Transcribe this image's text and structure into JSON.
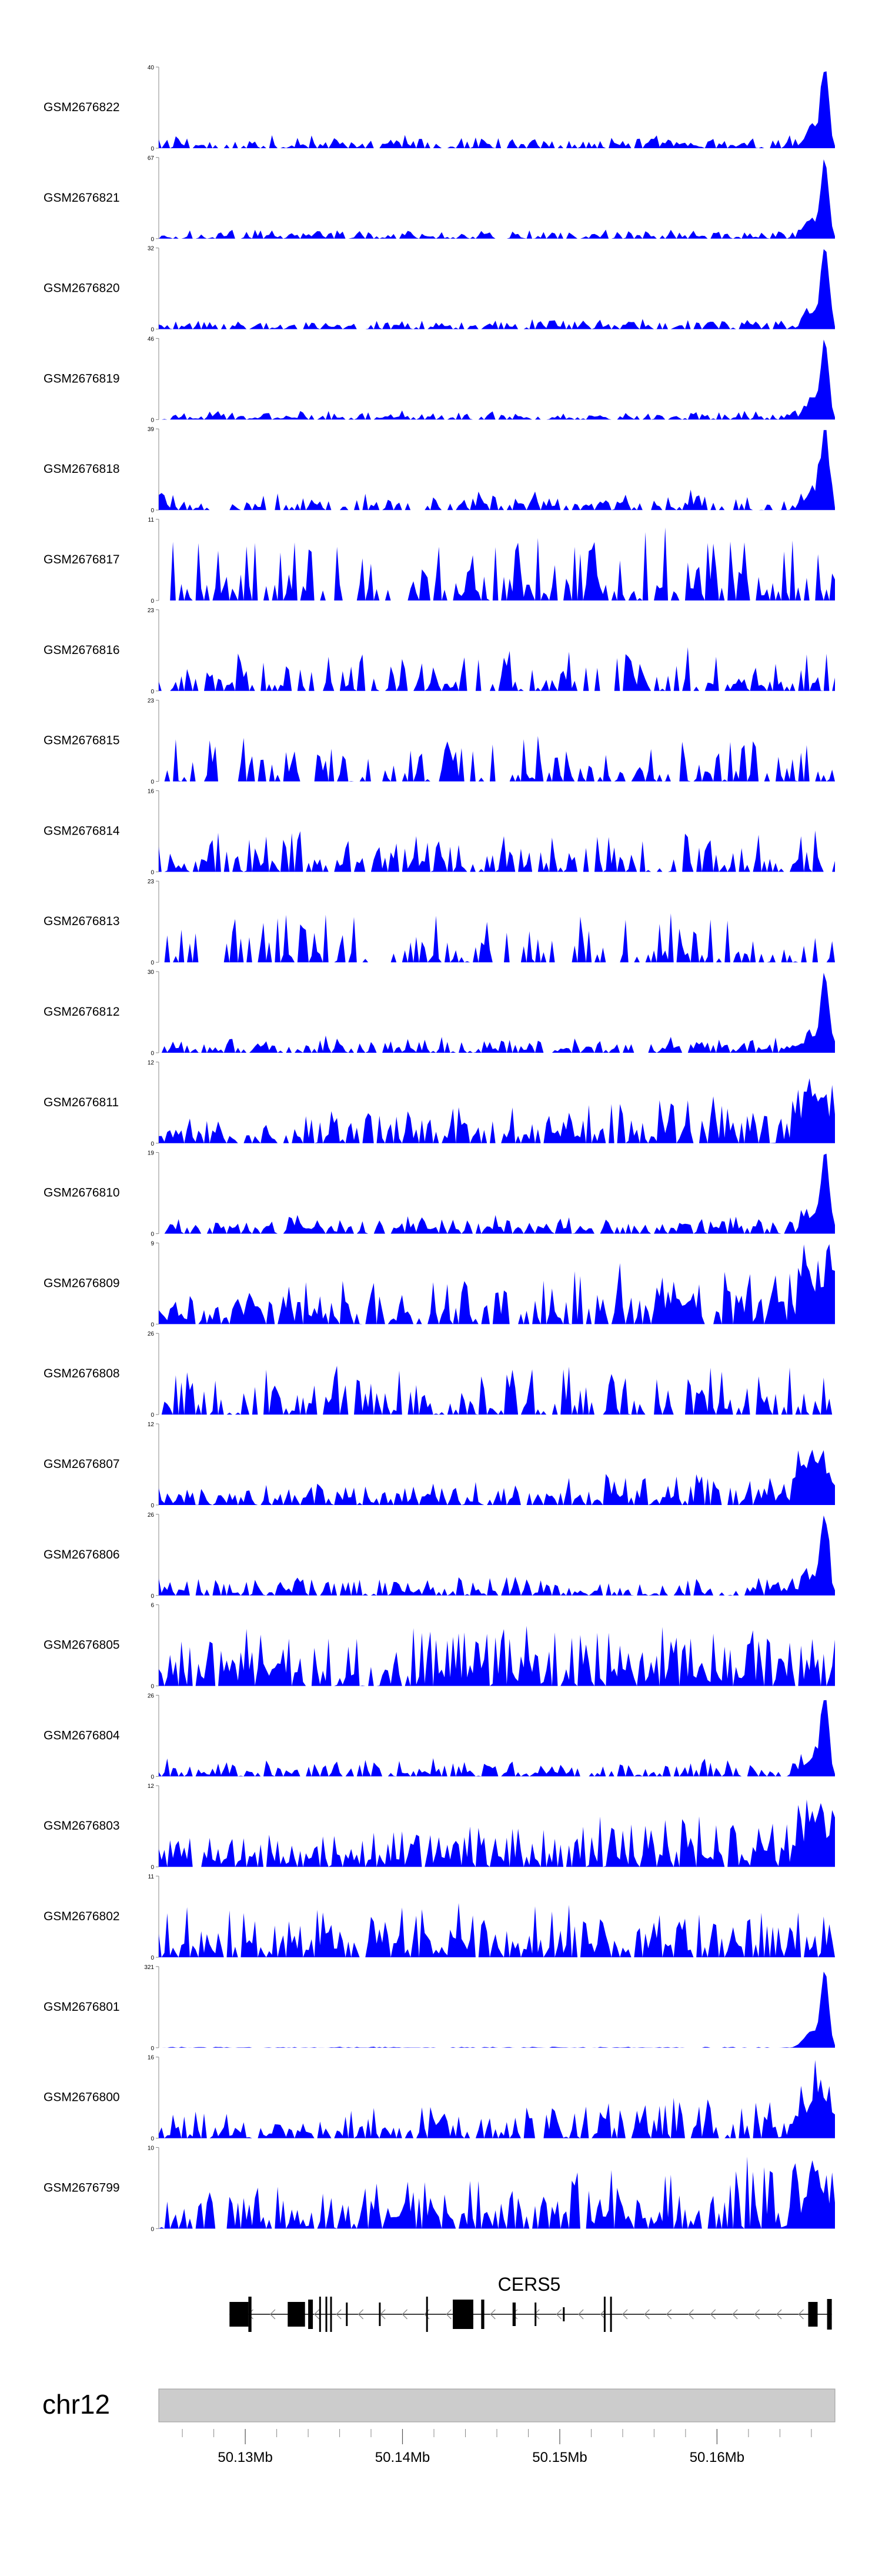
{
  "chart_data": {
    "type": "area",
    "title": "",
    "gene": {
      "name": "CERS5",
      "strand": "-"
    },
    "chromosome": "chr12",
    "genome_axis": {
      "range_mb": [
        50.1245,
        50.1675
      ],
      "tick_labels": [
        "50.13Mb",
        "50.14Mb",
        "50.15Mb",
        "50.16Mb"
      ],
      "tick_values_mb": [
        50.13,
        50.14,
        50.15,
        50.16
      ],
      "minor_tick_step_mb": 0.002
    },
    "track_color": "#0000ff",
    "tracks": [
      {
        "name": "GSM2676822",
        "ymax": 40,
        "profile": "peak",
        "base": 0.06,
        "noise": 0.11,
        "density": 0.7,
        "seed": 1
      },
      {
        "name": "GSM2676821",
        "ymax": 67,
        "profile": "peak",
        "base": 0.04,
        "noise": 0.08,
        "density": 0.7,
        "seed": 2
      },
      {
        "name": "GSM2676820",
        "ymax": 32,
        "profile": "peak",
        "base": 0.05,
        "noise": 0.09,
        "density": 0.7,
        "seed": 3
      },
      {
        "name": "GSM2676819",
        "ymax": 46,
        "profile": "peak",
        "base": 0.04,
        "noise": 0.08,
        "density": 0.7,
        "seed": 4
      },
      {
        "name": "GSM2676818",
        "ymax": 39,
        "profile": "peak",
        "base": 0.08,
        "noise": 0.18,
        "density": 0.6,
        "seed": 5
      },
      {
        "name": "GSM2676817",
        "ymax": 11,
        "profile": "spiky",
        "base": 0.2,
        "noise": 0.75,
        "density": 0.55,
        "seed": 6
      },
      {
        "name": "GSM2676816",
        "ymax": 23,
        "profile": "spiky",
        "base": 0.1,
        "noise": 0.45,
        "density": 0.6,
        "seed": 7
      },
      {
        "name": "GSM2676815",
        "ymax": 23,
        "profile": "spiky",
        "base": 0.1,
        "noise": 0.5,
        "density": 0.45,
        "seed": 8
      },
      {
        "name": "GSM2676814",
        "ymax": 16,
        "profile": "spiky",
        "base": 0.1,
        "noise": 0.45,
        "density": 0.6,
        "seed": 9
      },
      {
        "name": "GSM2676813",
        "ymax": 23,
        "profile": "spiky",
        "base": 0.1,
        "noise": 0.55,
        "density": 0.45,
        "seed": 10
      },
      {
        "name": "GSM2676812",
        "ymax": 30,
        "profile": "peak",
        "base": 0.06,
        "noise": 0.16,
        "density": 0.7,
        "seed": 11
      },
      {
        "name": "GSM2676811",
        "ymax": 12,
        "profile": "rising",
        "base": 0.15,
        "noise": 0.38,
        "density": 0.75,
        "seed": 12
      },
      {
        "name": "GSM2676810",
        "ymax": 19,
        "profile": "peak",
        "base": 0.08,
        "noise": 0.18,
        "density": 0.75,
        "seed": 13
      },
      {
        "name": "GSM2676809",
        "ymax": 9,
        "profile": "rising",
        "base": 0.2,
        "noise": 0.55,
        "density": 0.75,
        "seed": 14
      },
      {
        "name": "GSM2676808",
        "ymax": 26,
        "profile": "spiky",
        "base": 0.1,
        "noise": 0.55,
        "density": 0.55,
        "seed": 15
      },
      {
        "name": "GSM2676807",
        "ymax": 12,
        "profile": "rising",
        "base": 0.1,
        "noise": 0.28,
        "density": 0.8,
        "seed": 16
      },
      {
        "name": "GSM2676806",
        "ymax": 26,
        "profile": "peak",
        "base": 0.06,
        "noise": 0.2,
        "density": 0.7,
        "seed": 17
      },
      {
        "name": "GSM2676805",
        "ymax": 6,
        "profile": "flat",
        "base": 0.2,
        "noise": 0.6,
        "density": 0.8,
        "seed": 18
      },
      {
        "name": "GSM2676804",
        "ymax": 26,
        "profile": "peak",
        "base": 0.06,
        "noise": 0.18,
        "density": 0.7,
        "seed": 19
      },
      {
        "name": "GSM2676803",
        "ymax": 12,
        "profile": "rising",
        "base": 0.15,
        "noise": 0.45,
        "density": 0.8,
        "seed": 20
      },
      {
        "name": "GSM2676802",
        "ymax": 11,
        "profile": "flat",
        "base": 0.15,
        "noise": 0.55,
        "density": 0.75,
        "seed": 21
      },
      {
        "name": "GSM2676801",
        "ymax": 321,
        "profile": "peak",
        "base": 0.005,
        "noise": 0.01,
        "density": 0.6,
        "seed": 22
      },
      {
        "name": "GSM2676800",
        "ymax": 16,
        "profile": "rising",
        "base": 0.1,
        "noise": 0.4,
        "density": 0.75,
        "seed": 23
      },
      {
        "name": "GSM2676799",
        "ymax": 10,
        "profile": "rising",
        "base": 0.15,
        "noise": 0.6,
        "density": 0.75,
        "seed": 24
      }
    ]
  }
}
